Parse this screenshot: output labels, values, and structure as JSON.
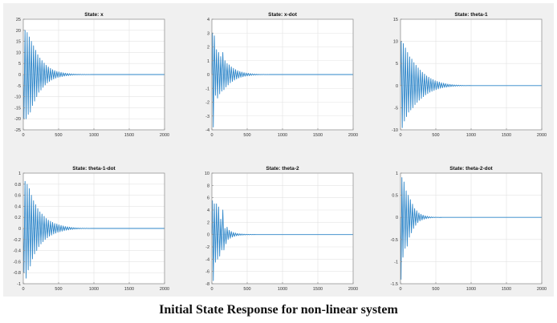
{
  "caption": "Initial State Response for non-linear system",
  "colors": {
    "panel_background": "#f0f0f0",
    "plot_background": "#ffffff",
    "line": "#2e86c9",
    "grid": "#e3e3e3",
    "axis": "#8c8c8c"
  },
  "chart_data": [
    {
      "type": "line",
      "title": "State: x",
      "xlim": [
        0,
        2000
      ],
      "ylim": [
        -25,
        25
      ],
      "xticks": [
        0,
        500,
        1000,
        1500,
        2000
      ],
      "yticks": [
        -25,
        -20,
        -15,
        -10,
        -5,
        0,
        5,
        10,
        15,
        20,
        25
      ],
      "grid": true,
      "series": [
        {
          "x": [
            0,
            10,
            25,
            40,
            55,
            70,
            85,
            100,
            115,
            130,
            145,
            160,
            175,
            190,
            205,
            220,
            235,
            250,
            265,
            280,
            295,
            310,
            325,
            340,
            355,
            370,
            385,
            400,
            415,
            430,
            445,
            460,
            475,
            490,
            505,
            520,
            535,
            550,
            565,
            580,
            595,
            610,
            625,
            640,
            655,
            670,
            685,
            700,
            715,
            730,
            745,
            760,
            775,
            790,
            805,
            820,
            835,
            850,
            865,
            880,
            895,
            910,
            925,
            940,
            955,
            970,
            985,
            1000,
            2000
          ],
          "y": [
            0,
            -20,
            20,
            -20,
            19,
            -18,
            17,
            -17,
            15,
            -14,
            13,
            -12,
            11,
            -10,
            9,
            -8,
            7.5,
            -7,
            6.3,
            -5.8,
            5.2,
            -4.7,
            4.2,
            -3.8,
            3.4,
            -3.1,
            2.8,
            -2.5,
            2.2,
            -2,
            1.8,
            -1.6,
            1.4,
            -1.3,
            1.2,
            -1.1,
            1,
            -0.9,
            0.8,
            -0.7,
            0.6,
            -0.55,
            0.5,
            -0.45,
            0.4,
            -0.35,
            0.3,
            -0.27,
            0.24,
            -0.21,
            0.18,
            -0.16,
            0.14,
            -0.12,
            0.1,
            -0.09,
            0.08,
            -0.07,
            0.06,
            -0.05,
            0.04,
            -0.03,
            0.02,
            -0.015,
            0.01,
            -0.005,
            0,
            0,
            0
          ]
        }
      ]
    },
    {
      "type": "line",
      "title": "State: x-dot",
      "xlim": [
        0,
        2000
      ],
      "ylim": [
        -4,
        4
      ],
      "xticks": [
        0,
        500,
        1000,
        1500,
        2000
      ],
      "yticks": [
        -4,
        -3,
        -2,
        -1,
        0,
        1,
        2,
        3,
        4
      ],
      "grid": true,
      "series": [
        {
          "x": [
            0,
            8,
            20,
            35,
            50,
            65,
            80,
            95,
            110,
            125,
            140,
            155,
            170,
            185,
            200,
            215,
            230,
            245,
            260,
            275,
            290,
            305,
            320,
            335,
            350,
            365,
            380,
            395,
            410,
            425,
            440,
            455,
            470,
            485,
            500,
            515,
            530,
            545,
            560,
            575,
            590,
            605,
            620,
            635,
            650,
            665,
            680,
            695,
            710,
            725,
            740,
            755,
            770,
            785,
            800,
            815,
            830,
            845,
            860,
            875,
            890,
            905,
            920,
            935,
            950,
            965,
            980,
            1000,
            2000
          ],
          "y": [
            0,
            3,
            -3.8,
            2.8,
            -1.5,
            1.8,
            -1.7,
            1.6,
            -1.4,
            1.3,
            -1.2,
            1.6,
            -1.1,
            1,
            -0.9,
            0.8,
            -0.75,
            0.7,
            -0.6,
            0.55,
            -0.5,
            0.45,
            -0.4,
            0.36,
            -0.32,
            0.28,
            -0.25,
            0.22,
            -0.2,
            0.18,
            -0.16,
            0.14,
            -0.12,
            0.11,
            -0.1,
            0.09,
            -0.08,
            0.07,
            -0.06,
            0.05,
            -0.045,
            0.04,
            -0.035,
            0.03,
            -0.025,
            0.02,
            -0.015,
            0.01,
            -0.01,
            0.008,
            -0.006,
            0.005,
            -0.004,
            0.003,
            -0.002,
            0.001,
            0,
            0,
            0,
            0,
            0,
            0,
            0,
            0,
            0,
            0,
            0,
            0,
            0
          ]
        }
      ]
    },
    {
      "type": "line",
      "title": "State: theta-1",
      "xlim": [
        0,
        2000
      ],
      "ylim": [
        -10,
        15
      ],
      "xticks": [
        0,
        500,
        1000,
        1500,
        2000
      ],
      "yticks": [
        -10,
        -5,
        0,
        5,
        10,
        15
      ],
      "grid": true,
      "series": [
        {
          "x": [
            0,
            10,
            25,
            40,
            55,
            70,
            85,
            100,
            115,
            130,
            145,
            160,
            175,
            190,
            205,
            220,
            235,
            250,
            265,
            280,
            295,
            310,
            325,
            340,
            355,
            370,
            385,
            400,
            415,
            430,
            445,
            460,
            475,
            490,
            505,
            520,
            535,
            550,
            565,
            580,
            595,
            610,
            625,
            640,
            655,
            670,
            685,
            700,
            715,
            730,
            745,
            760,
            775,
            790,
            805,
            820,
            835,
            850,
            865,
            880,
            895,
            910,
            925,
            940,
            955,
            970,
            1000,
            2000
          ],
          "y": [
            0,
            10,
            -9.5,
            9.5,
            -8,
            8.5,
            -7,
            7.5,
            -6,
            6.5,
            -5.5,
            6,
            -5,
            5.2,
            -4.3,
            4.6,
            -3.8,
            4,
            -3.3,
            3.5,
            -2.9,
            3,
            -2.5,
            2.6,
            -2.1,
            2.2,
            -1.8,
            1.9,
            -1.5,
            1.6,
            -1.3,
            1.35,
            -1.1,
            1.1,
            -0.9,
            0.95,
            -0.75,
            0.8,
            -0.6,
            0.65,
            -0.5,
            0.55,
            -0.4,
            0.45,
            -0.35,
            0.35,
            -0.28,
            0.28,
            -0.22,
            0.22,
            -0.17,
            0.17,
            -0.13,
            0.13,
            -0.1,
            0.1,
            -0.07,
            0.07,
            -0.05,
            0.05,
            -0.03,
            0.03,
            -0.02,
            0.02,
            -0.01,
            0.01,
            0,
            0
          ]
        }
      ]
    },
    {
      "type": "line",
      "title": "State: theta-1-dot",
      "xlim": [
        0,
        2000
      ],
      "ylim": [
        -1,
        1
      ],
      "xticks": [
        0,
        500,
        1000,
        1500,
        2000
      ],
      "yticks": [
        -1,
        -0.8,
        -0.6,
        -0.4,
        -0.2,
        0,
        0.2,
        0.4,
        0.6,
        0.8,
        1
      ],
      "grid": true,
      "series": [
        {
          "x": [
            0,
            10,
            25,
            40,
            55,
            70,
            85,
            100,
            115,
            130,
            145,
            160,
            175,
            190,
            205,
            220,
            235,
            250,
            265,
            280,
            295,
            310,
            325,
            340,
            355,
            370,
            385,
            400,
            415,
            430,
            445,
            460,
            475,
            490,
            505,
            520,
            535,
            550,
            565,
            580,
            595,
            610,
            625,
            640,
            655,
            670,
            685,
            700,
            715,
            730,
            745,
            760,
            775,
            790,
            805,
            820,
            835,
            850,
            865,
            880,
            895,
            910,
            925,
            940,
            955,
            970,
            1000,
            2000
          ],
          "y": [
            0,
            -0.8,
            0.85,
            -0.9,
            0.8,
            -0.75,
            0.72,
            -0.68,
            0.6,
            -0.55,
            0.5,
            -0.46,
            0.43,
            -0.4,
            0.36,
            -0.33,
            0.3,
            -0.28,
            0.26,
            -0.24,
            0.22,
            -0.2,
            0.18,
            -0.17,
            0.15,
            -0.14,
            0.13,
            -0.12,
            0.11,
            -0.1,
            0.09,
            -0.085,
            0.08,
            -0.07,
            0.065,
            -0.06,
            0.055,
            -0.05,
            0.045,
            -0.04,
            0.035,
            -0.032,
            0.03,
            -0.027,
            0.024,
            -0.02,
            0.018,
            -0.016,
            0.014,
            -0.012,
            0.01,
            -0.009,
            0.008,
            -0.007,
            0.006,
            -0.005,
            0.004,
            -0.003,
            0.003,
            -0.002,
            0.002,
            -0.001,
            0.001,
            -0.001,
            0,
            0,
            0,
            0
          ]
        }
      ]
    },
    {
      "type": "line",
      "title": "State: theta-2",
      "xlim": [
        0,
        2000
      ],
      "ylim": [
        -8,
        10
      ],
      "xticks": [
        0,
        500,
        1000,
        1500,
        2000
      ],
      "yticks": [
        -8,
        -6,
        -4,
        -2,
        0,
        2,
        4,
        6,
        8,
        10
      ],
      "grid": true,
      "series": [
        {
          "x": [
            0,
            8,
            20,
            35,
            50,
            65,
            80,
            95,
            110,
            125,
            140,
            155,
            170,
            185,
            200,
            215,
            230,
            245,
            260,
            275,
            290,
            305,
            320,
            335,
            350,
            365,
            380,
            395,
            410,
            425,
            440,
            455,
            470,
            485,
            500,
            515,
            530,
            545,
            560,
            575,
            590,
            605,
            620,
            635,
            650,
            665,
            680,
            695,
            710,
            725,
            740,
            755,
            770,
            785,
            800,
            1000,
            2000
          ],
          "y": [
            0,
            5.5,
            -7.5,
            5,
            -4.5,
            5,
            -4,
            4.5,
            -3.5,
            2.5,
            -2.5,
            4,
            -2.5,
            1,
            -1.5,
            1.2,
            -0.8,
            0.7,
            -0.6,
            0.5,
            -0.4,
            0.35,
            -0.3,
            0.25,
            -0.2,
            0.18,
            -0.15,
            0.13,
            -0.11,
            0.1,
            -0.08,
            0.07,
            -0.06,
            0.05,
            -0.04,
            0.035,
            -0.03,
            0.025,
            -0.02,
            0.015,
            -0.01,
            0.008,
            -0.006,
            0.004,
            -0.003,
            0.002,
            -0.001,
            0.001,
            0,
            0,
            0,
            0,
            0,
            0,
            0,
            0,
            0
          ]
        }
      ]
    },
    {
      "type": "line",
      "title": "State: theta-2-dot",
      "xlim": [
        0,
        2000
      ],
      "ylim": [
        -1.5,
        1
      ],
      "xticks": [
        0,
        500,
        1000,
        1500,
        2000
      ],
      "yticks": [
        -1.5,
        -1,
        -0.5,
        0,
        0.5,
        1
      ],
      "grid": true,
      "series": [
        {
          "x": [
            0,
            8,
            20,
            35,
            50,
            65,
            80,
            95,
            110,
            125,
            140,
            155,
            170,
            185,
            200,
            215,
            230,
            245,
            260,
            275,
            290,
            305,
            320,
            335,
            350,
            365,
            380,
            395,
            410,
            425,
            440,
            455,
            470,
            485,
            500,
            515,
            530,
            545,
            560,
            575,
            590,
            605,
            620,
            635,
            650,
            665,
            680,
            1000,
            2000
          ],
          "y": [
            0,
            -1.4,
            0.9,
            -0.9,
            0.8,
            -0.7,
            0.6,
            -0.65,
            0.5,
            -0.45,
            0.4,
            -0.35,
            0.3,
            -0.25,
            0.2,
            -0.18,
            0.15,
            -0.12,
            0.1,
            -0.08,
            0.07,
            -0.06,
            0.05,
            -0.04,
            0.035,
            -0.03,
            0.025,
            -0.02,
            0.015,
            -0.012,
            0.01,
            -0.008,
            0.006,
            -0.005,
            0.004,
            -0.003,
            0.002,
            -0.002,
            0.001,
            -0.001,
            0,
            0,
            0,
            0,
            0,
            0,
            0,
            0,
            0
          ]
        }
      ]
    }
  ]
}
